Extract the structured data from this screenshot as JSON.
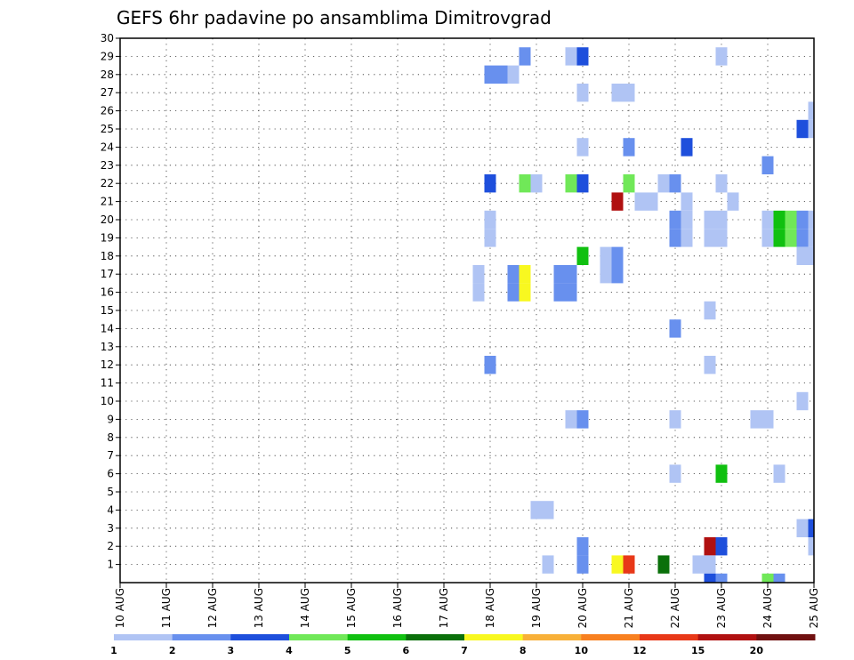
{
  "chart_data": {
    "type": "heatmap",
    "title": "GEFS 6hr padavine po ansamblima Dimitrovgrad",
    "xlabel": "",
    "ylabel": "",
    "x_ticks": [
      "10 AUG",
      "11 AUG",
      "12 AUG",
      "13 AUG",
      "14 AUG",
      "15 AUG",
      "16 AUG",
      "17 AUG",
      "18 AUG",
      "19 AUG",
      "20 AUG",
      "21 AUG",
      "22 AUG",
      "23 AUG",
      "24 AUG",
      "25 AUG"
    ],
    "y_ticks": [
      "1",
      "2",
      "3",
      "4",
      "5",
      "6",
      "7",
      "8",
      "9",
      "10",
      "11",
      "12",
      "13",
      "14",
      "15",
      "16",
      "17",
      "18",
      "19",
      "20",
      "21",
      "22",
      "23",
      "24",
      "25",
      "26",
      "27",
      "28",
      "29",
      "30"
    ],
    "xlim_days": [
      10,
      25
    ],
    "ylim": [
      0,
      30
    ],
    "grid": true,
    "colorbar": {
      "levels": [
        "1",
        "2",
        "3",
        "4",
        "5",
        "6",
        "7",
        "8",
        "10",
        "12",
        "15",
        "20"
      ],
      "colors": [
        "#b0c4f4",
        "#6890ee",
        "#1e4fdc",
        "#70e858",
        "#10c010",
        "#0a700a",
        "#f8f820",
        "#f8b038",
        "#f88020",
        "#e83818",
        "#b01010",
        "#701010"
      ]
    },
    "cells": [
      {
        "day": 18.0,
        "member": 28,
        "value": 2
      },
      {
        "day": 18.25,
        "member": 28,
        "value": 2
      },
      {
        "day": 18.5,
        "member": 28,
        "value": 1
      },
      {
        "day": 18.75,
        "member": 29,
        "value": 2
      },
      {
        "day": 19.75,
        "member": 29,
        "value": 1
      },
      {
        "day": 20.0,
        "member": 29,
        "value": 3
      },
      {
        "day": 23.0,
        "member": 29,
        "value": 1
      },
      {
        "day": 20.0,
        "member": 27,
        "value": 1
      },
      {
        "day": 20.75,
        "member": 27,
        "value": 1
      },
      {
        "day": 21.0,
        "member": 27,
        "value": 1
      },
      {
        "day": 25.0,
        "member": 26,
        "value": 1
      },
      {
        "day": 24.75,
        "member": 25,
        "value": 3
      },
      {
        "day": 25.0,
        "member": 25,
        "value": 1
      },
      {
        "day": 20.0,
        "member": 24,
        "value": 1
      },
      {
        "day": 21.0,
        "member": 24,
        "value": 2
      },
      {
        "day": 22.25,
        "member": 24,
        "value": 3
      },
      {
        "day": 24.0,
        "member": 23,
        "value": 2
      },
      {
        "day": 18.0,
        "member": 22,
        "value": 3
      },
      {
        "day": 18.75,
        "member": 22,
        "value": 4
      },
      {
        "day": 19.0,
        "member": 22,
        "value": 1
      },
      {
        "day": 19.75,
        "member": 22,
        "value": 4
      },
      {
        "day": 20.0,
        "member": 22,
        "value": 3
      },
      {
        "day": 21.0,
        "member": 22,
        "value": 4
      },
      {
        "day": 21.75,
        "member": 22,
        "value": 1
      },
      {
        "day": 22.0,
        "member": 22,
        "value": 2
      },
      {
        "day": 23.0,
        "member": 22,
        "value": 1
      },
      {
        "day": 20.75,
        "member": 21,
        "value": 15
      },
      {
        "day": 21.25,
        "member": 21,
        "value": 1
      },
      {
        "day": 21.5,
        "member": 21,
        "value": 1
      },
      {
        "day": 22.25,
        "member": 21,
        "value": 1
      },
      {
        "day": 23.25,
        "member": 21,
        "value": 1
      },
      {
        "day": 18.0,
        "member": 20,
        "value": 1
      },
      {
        "day": 22.0,
        "member": 20,
        "value": 2
      },
      {
        "day": 22.25,
        "member": 20,
        "value": 1
      },
      {
        "day": 22.75,
        "member": 20,
        "value": 1
      },
      {
        "day": 23.0,
        "member": 20,
        "value": 1
      },
      {
        "day": 24.0,
        "member": 20,
        "value": 1
      },
      {
        "day": 24.25,
        "member": 20,
        "value": 5
      },
      {
        "day": 24.5,
        "member": 20,
        "value": 4
      },
      {
        "day": 24.75,
        "member": 20,
        "value": 2
      },
      {
        "day": 25.0,
        "member": 20,
        "value": 1
      },
      {
        "day": 18.0,
        "member": 19,
        "value": 1
      },
      {
        "day": 22.0,
        "member": 19,
        "value": 2
      },
      {
        "day": 22.25,
        "member": 19,
        "value": 1
      },
      {
        "day": 22.75,
        "member": 19,
        "value": 1
      },
      {
        "day": 23.0,
        "member": 19,
        "value": 1
      },
      {
        "day": 24.0,
        "member": 19,
        "value": 1
      },
      {
        "day": 24.25,
        "member": 19,
        "value": 5
      },
      {
        "day": 24.5,
        "member": 19,
        "value": 4
      },
      {
        "day": 24.75,
        "member": 19,
        "value": 2
      },
      {
        "day": 25.0,
        "member": 19,
        "value": 1
      },
      {
        "day": 24.75,
        "member": 18,
        "value": 1
      },
      {
        "day": 25.0,
        "member": 18,
        "value": 1
      },
      {
        "day": 20.0,
        "member": 18,
        "value": 5
      },
      {
        "day": 20.5,
        "member": 18,
        "value": 1
      },
      {
        "day": 20.75,
        "member": 18,
        "value": 2
      },
      {
        "day": 20.5,
        "member": 17,
        "value": 1
      },
      {
        "day": 20.75,
        "member": 17,
        "value": 2
      },
      {
        "day": 17.75,
        "member": 17,
        "value": 1
      },
      {
        "day": 18.5,
        "member": 17,
        "value": 2
      },
      {
        "day": 18.75,
        "member": 17,
        "value": 7
      },
      {
        "day": 19.5,
        "member": 17,
        "value": 2
      },
      {
        "day": 19.75,
        "member": 17,
        "value": 2
      },
      {
        "day": 17.75,
        "member": 16,
        "value": 1
      },
      {
        "day": 18.5,
        "member": 16,
        "value": 2
      },
      {
        "day": 18.75,
        "member": 16,
        "value": 7
      },
      {
        "day": 19.5,
        "member": 16,
        "value": 2
      },
      {
        "day": 19.75,
        "member": 16,
        "value": 2
      },
      {
        "day": 22.75,
        "member": 15,
        "value": 1
      },
      {
        "day": 22.0,
        "member": 14,
        "value": 2
      },
      {
        "day": 18.0,
        "member": 12,
        "value": 2
      },
      {
        "day": 22.75,
        "member": 12,
        "value": 1
      },
      {
        "day": 24.75,
        "member": 10,
        "value": 1
      },
      {
        "day": 19.75,
        "member": 9,
        "value": 1
      },
      {
        "day": 20.0,
        "member": 9,
        "value": 2
      },
      {
        "day": 22.0,
        "member": 9,
        "value": 1
      },
      {
        "day": 23.75,
        "member": 9,
        "value": 1
      },
      {
        "day": 24.0,
        "member": 9,
        "value": 1
      },
      {
        "day": 22.0,
        "member": 6,
        "value": 1
      },
      {
        "day": 23.0,
        "member": 6,
        "value": 5
      },
      {
        "day": 24.25,
        "member": 6,
        "value": 1
      },
      {
        "day": 19.0,
        "member": 4,
        "value": 1
      },
      {
        "day": 19.25,
        "member": 4,
        "value": 1
      },
      {
        "day": 24.75,
        "member": 3,
        "value": 1
      },
      {
        "day": 25.0,
        "member": 3,
        "value": 3
      },
      {
        "day": 20.0,
        "member": 2,
        "value": 2
      },
      {
        "day": 22.75,
        "member": 2,
        "value": 15
      },
      {
        "day": 23.0,
        "member": 2,
        "value": 3
      },
      {
        "day": 25.0,
        "member": 2,
        "value": 1
      },
      {
        "day": 19.25,
        "member": 1,
        "value": 1
      },
      {
        "day": 20.0,
        "member": 1,
        "value": 2
      },
      {
        "day": 20.75,
        "member": 1,
        "value": 7
      },
      {
        "day": 21.0,
        "member": 1,
        "value": 12
      },
      {
        "day": 21.75,
        "member": 1,
        "value": 6
      },
      {
        "day": 22.5,
        "member": 1,
        "value": 1
      },
      {
        "day": 22.75,
        "member": 1,
        "value": 1
      },
      {
        "day": 22.75,
        "member": 0,
        "value": 3
      },
      {
        "day": 23.0,
        "member": 0,
        "value": 2
      },
      {
        "day": 24.0,
        "member": 0,
        "value": 4
      },
      {
        "day": 24.25,
        "member": 0,
        "value": 2
      }
    ]
  }
}
